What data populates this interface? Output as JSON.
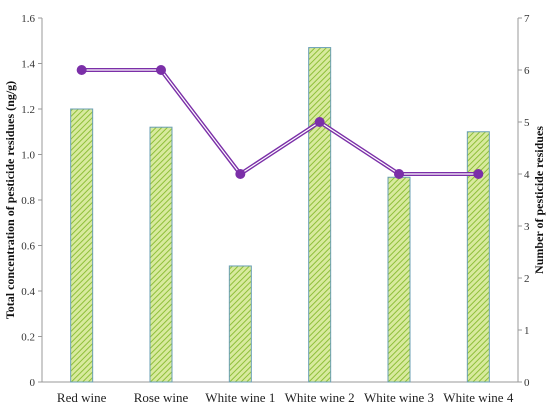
{
  "chart_data": {
    "type": "bar+line",
    "categories": [
      "Red wine",
      "Rose wine",
      "White wine 1",
      "White wine 2",
      "White wine 3",
      "White wine 4"
    ],
    "series": [
      {
        "type": "bar",
        "axis": "left",
        "values": [
          1.2,
          1.12,
          0.51,
          1.47,
          0.9,
          1.1
        ],
        "color": "#b5d36a",
        "pattern": "diagonal-hatch",
        "edge_color": "#6a9fb5"
      },
      {
        "type": "line",
        "axis": "right",
        "values": [
          6,
          6,
          4,
          5,
          4,
          4
        ],
        "color": "#7b2fa8",
        "marker": "circle"
      }
    ],
    "title": "",
    "xlabel": "",
    "ylabel": "Total concentration of pesticide residues (ng/g)",
    "y2label": "Number of pesticide residues",
    "ylim": [
      0,
      1.6
    ],
    "y2lim": [
      0,
      7
    ],
    "yticks": [
      "0",
      "0.2",
      "0.4",
      "0.6",
      "0.8",
      "1.0",
      "1.2",
      "1.4",
      "1.6"
    ],
    "y2ticks": [
      "0",
      "1",
      "2",
      "3",
      "4",
      "5",
      "6",
      "7"
    ],
    "grid": false,
    "legend": "none"
  }
}
